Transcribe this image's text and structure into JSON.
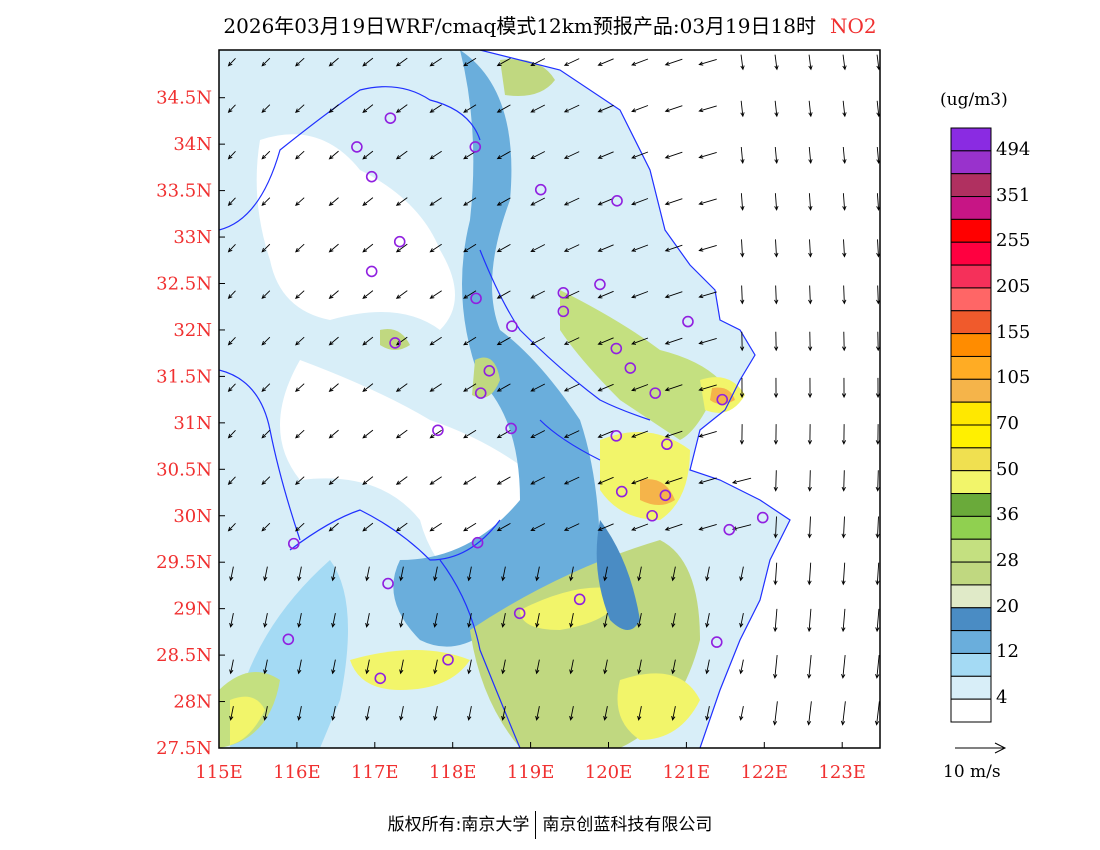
{
  "title": {
    "main": "2026年03月19日WRF/cmaq模式12km预报产品:03月19日18时",
    "species": "NO2"
  },
  "colorbar": {
    "unit": "(ug/m3)",
    "colors": [
      "#8a2be2",
      "#9932cc",
      "#b03060",
      "#c71585",
      "#ff0000",
      "#ff0040",
      "#f5305a",
      "#ff6666",
      "#f05a2c",
      "#ff8c00",
      "#ffac24",
      "#f5b44a",
      "#ffe800",
      "#fff000",
      "#f0e050",
      "#f2f56a",
      "#6aaa3a",
      "#90d050",
      "#c4e080",
      "#c0d880",
      "#e0eac8",
      "#4a8cc4",
      "#6aaedc",
      "#a4daf4",
      "#d8eef8",
      "#ffffff"
    ],
    "labels": [
      "494",
      "351",
      "255",
      "205",
      "155",
      "105",
      "70",
      "50",
      "36",
      "28",
      "20",
      "12",
      "4"
    ]
  },
  "wind_reference": {
    "label": "10 m/s"
  },
  "chart_data": {
    "type": "heatmap",
    "title": "2026年03月19日WRF/cmaq模式12km预报产品:03月19日18时 NO2",
    "xlabel": "",
    "ylabel": "",
    "xlim": [
      115,
      123.5
    ],
    "ylim": [
      27.5,
      35.0
    ],
    "x_ticks": [
      "115E",
      "116E",
      "117E",
      "118E",
      "119E",
      "120E",
      "121E",
      "122E",
      "123E"
    ],
    "x_tick_values": [
      115,
      116,
      117,
      118,
      119,
      120,
      121,
      122,
      123
    ],
    "y_ticks": [
      "27.5N",
      "28N",
      "28.5N",
      "29N",
      "29.5N",
      "30N",
      "30.5N",
      "31N",
      "31.5N",
      "32N",
      "32.5N",
      "33N",
      "33.5N",
      "34N",
      "34.5N"
    ],
    "y_tick_values": [
      27.5,
      28,
      28.5,
      29,
      29.5,
      30,
      30.5,
      31,
      31.5,
      32,
      32.5,
      33,
      33.5,
      34,
      34.5
    ],
    "stations": [
      [
        116.77,
        33.97
      ],
      [
        116.96,
        33.65
      ],
      [
        117.32,
        32.95
      ],
      [
        116.96,
        32.63
      ],
      [
        117.2,
        34.28
      ],
      [
        118.29,
        33.97
      ],
      [
        119.13,
        33.51
      ],
      [
        120.11,
        33.39
      ],
      [
        118.3,
        32.34
      ],
      [
        119.42,
        32.4
      ],
      [
        119.42,
        32.2
      ],
      [
        119.89,
        32.49
      ],
      [
        118.76,
        32.04
      ],
      [
        117.26,
        31.86
      ],
      [
        120.1,
        31.8
      ],
      [
        121.02,
        32.09
      ],
      [
        120.28,
        31.59
      ],
      [
        118.47,
        31.56
      ],
      [
        118.36,
        31.32
      ],
      [
        120.6,
        31.32
      ],
      [
        121.46,
        31.25
      ],
      [
        117.81,
        30.92
      ],
      [
        118.75,
        30.94
      ],
      [
        120.1,
        30.86
      ],
      [
        120.75,
        30.77
      ],
      [
        120.17,
        30.26
      ],
      [
        120.73,
        30.22
      ],
      [
        120.56,
        30.0
      ],
      [
        121.98,
        29.98
      ],
      [
        121.55,
        29.85
      ],
      [
        115.96,
        29.7
      ],
      [
        118.32,
        29.71
      ],
      [
        117.17,
        29.27
      ],
      [
        118.86,
        28.95
      ],
      [
        119.63,
        29.1
      ],
      [
        115.89,
        28.67
      ],
      [
        121.39,
        28.64
      ],
      [
        117.94,
        28.45
      ],
      [
        117.07,
        28.25
      ]
    ]
  },
  "footer": {
    "left": "版权所有:南京大学",
    "right": "南京创蓝科技有限公司"
  }
}
